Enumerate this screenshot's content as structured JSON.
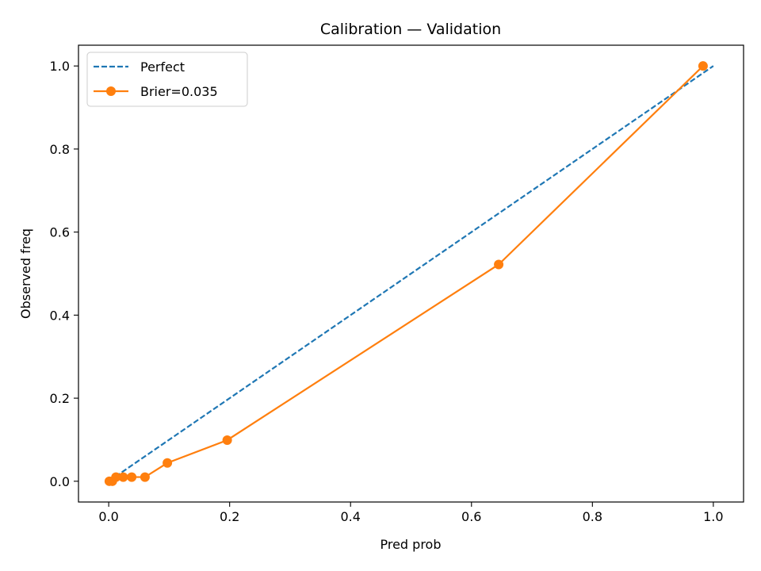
{
  "chart_data": {
    "type": "line",
    "title": "Calibration — Validation",
    "xlabel": "Pred prob",
    "ylabel": "Observed freq",
    "xlim": [
      -0.05,
      1.05
    ],
    "ylim": [
      -0.05,
      1.05
    ],
    "xticks": [
      0.0,
      0.2,
      0.4,
      0.6,
      0.8,
      1.0
    ],
    "yticks": [
      0.0,
      0.2,
      0.4,
      0.6,
      0.8,
      1.0
    ],
    "xtick_labels": [
      "0.0",
      "0.2",
      "0.4",
      "0.6",
      "0.8",
      "1.0"
    ],
    "ytick_labels": [
      "0.0",
      "0.2",
      "0.4",
      "0.6",
      "0.8",
      "1.0"
    ],
    "grid": false,
    "legend_position": "top-left",
    "series": [
      {
        "name": "Perfect",
        "style": "dashed",
        "color": "#1f77b4",
        "x": [
          0.0,
          1.0
        ],
        "y": [
          0.0,
          1.0
        ]
      },
      {
        "name": "Brier=0.035",
        "style": "solid-markers",
        "color": "#ff7f0e",
        "x": [
          0.001,
          0.006,
          0.012,
          0.024,
          0.038,
          0.06,
          0.097,
          0.196,
          0.645,
          0.983
        ],
        "y": [
          0.0,
          0.0,
          0.01,
          0.01,
          0.01,
          0.01,
          0.044,
          0.099,
          0.522,
          1.0
        ]
      }
    ]
  }
}
